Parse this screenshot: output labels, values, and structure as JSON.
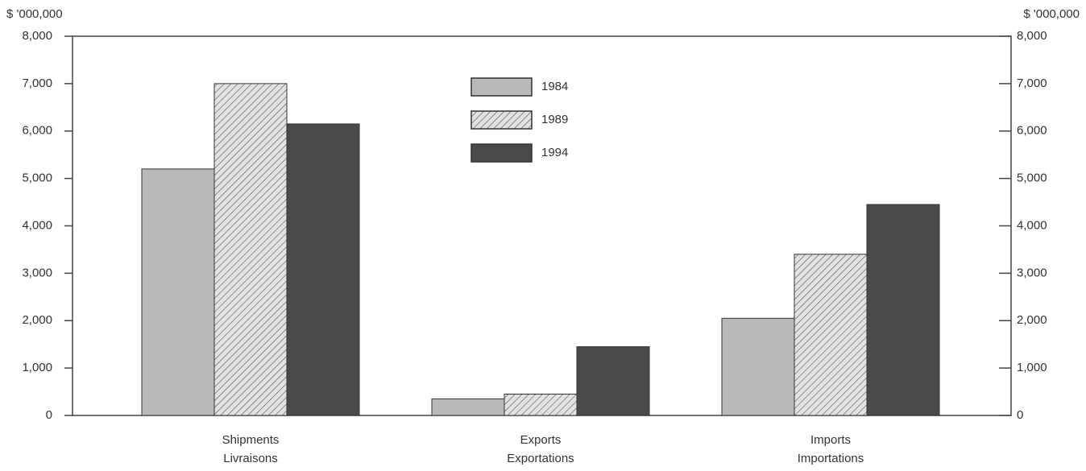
{
  "chart_data": {
    "type": "bar",
    "y_label": "$ '000,000",
    "y2_label": "$ '000,000",
    "categories": [
      [
        "Shipments",
        "Livraisons"
      ],
      [
        "Exports",
        "Exportations"
      ],
      [
        "Imports",
        "Importations"
      ]
    ],
    "series": [
      {
        "name": "1984",
        "color": "#b9b9b9",
        "values": [
          5200,
          350,
          2050
        ]
      },
      {
        "name": "1989",
        "color": "#e2e2e2",
        "hatch": true,
        "values": [
          7000,
          450,
          3400
        ]
      },
      {
        "name": "1994",
        "color": "#4a4a4a",
        "values": [
          6150,
          1450,
          4450
        ]
      }
    ],
    "ylim": [
      0,
      8000
    ],
    "yticks": [
      0,
      {
        "value": 1000,
        "label": "1,000"
      },
      {
        "value": 2000,
        "label": "2,000"
      },
      {
        "value": 3000,
        "label": "3,000"
      },
      {
        "value": 4000,
        "label": "4,000"
      },
      {
        "value": 5000,
        "label": "5,000"
      },
      {
        "value": 6000,
        "label": "6,000"
      },
      {
        "value": 7000,
        "label": "7,000"
      },
      {
        "value": 8000,
        "label": "8,000"
      }
    ],
    "y2lim": [
      0,
      8000
    ],
    "y2ticks": [
      0,
      {
        "value": 1000,
        "label": "1,000"
      },
      {
        "value": 2000,
        "label": "2,000"
      },
      {
        "value": 3000,
        "label": "3,000"
      },
      {
        "value": 4000,
        "label": "4,000"
      },
      {
        "value": 5000,
        "label": "5,000"
      },
      {
        "value": 6000,
        "label": "6,000"
      },
      {
        "value": 7000,
        "label": "7,000"
      },
      {
        "value": 8000,
        "label": "8,000"
      }
    ],
    "legend": "top-center"
  }
}
